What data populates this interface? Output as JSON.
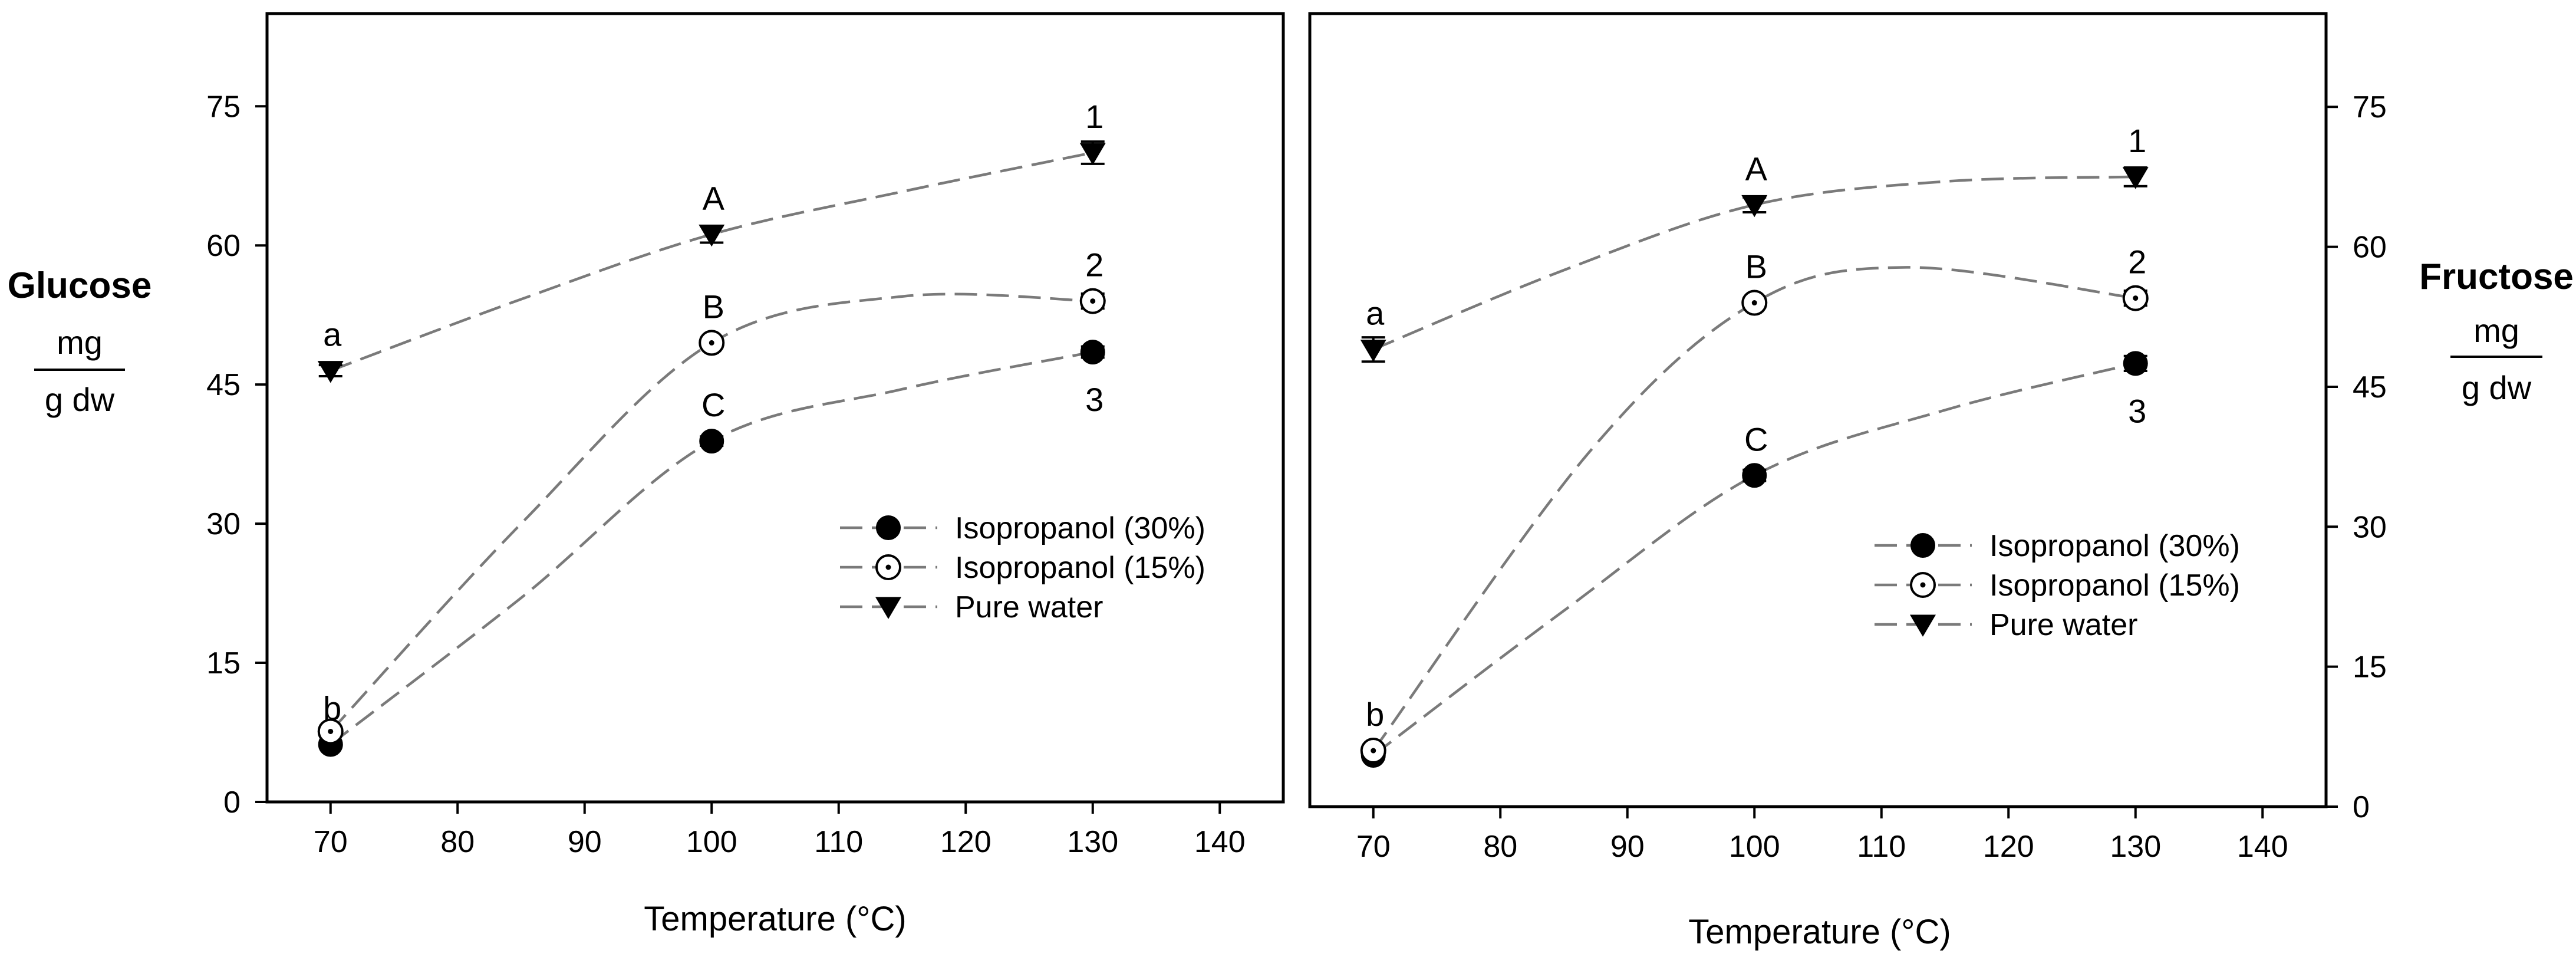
{
  "chart_data": [
    {
      "type": "line",
      "panel": "left",
      "ylabel_title": "Glucose",
      "ylabel_unit_numerator": "mg",
      "ylabel_unit_denominator": "g dw",
      "xlabel": "Temperature (°C)",
      "xlim": [
        65,
        145
      ],
      "ylim": [
        0,
        85
      ],
      "xticks": [
        70,
        80,
        90,
        100,
        110,
        120,
        130,
        140
      ],
      "yticks": [
        0,
        15,
        30,
        45,
        60,
        75
      ],
      "x": [
        70,
        100,
        130
      ],
      "legend_position": "center-right",
      "series": [
        {
          "name": "Isopropanol (30%)",
          "marker": "filled-circle",
          "values": [
            6.2,
            38.9,
            48.5
          ],
          "errors": [
            0.3,
            0.5,
            0.6
          ],
          "labels": [
            "b",
            "C",
            "3"
          ],
          "label_side": [
            "above",
            "above",
            "below"
          ],
          "curve_points": [
            [
              70,
              6.2
            ],
            [
              85,
              22
            ],
            [
              100,
              38.9
            ],
            [
              115,
              44.5
            ],
            [
              130,
              48.5
            ]
          ]
        },
        {
          "name": "Isopropanol (15%)",
          "marker": "dotted-circle",
          "values": [
            7.6,
            49.5,
            54.0
          ],
          "errors": [
            0.4,
            0.5,
            0.8
          ],
          "labels": [
            "",
            "B",
            "2"
          ],
          "label_side": [
            "above",
            "above",
            "above"
          ],
          "curve_points": [
            [
              70,
              7.6
            ],
            [
              85,
              30
            ],
            [
              100,
              49.5
            ],
            [
              115,
              54.5
            ],
            [
              130,
              54.0
            ]
          ]
        },
        {
          "name": "Pure water",
          "marker": "filled-triangle-down",
          "values": [
            46.5,
            61.2,
            70.0
          ],
          "errors": [
            0.6,
            0.9,
            1.2
          ],
          "labels": [
            "a",
            "A",
            "1"
          ],
          "label_side": [
            "above",
            "above",
            "above"
          ],
          "curve_points": [
            [
              70,
              46.5
            ],
            [
              85,
              54.2
            ],
            [
              100,
              61.2
            ],
            [
              115,
              65.8
            ],
            [
              130,
              70.0
            ]
          ]
        }
      ]
    },
    {
      "type": "line",
      "panel": "right",
      "ylabel_title": "Fructose",
      "ylabel_unit_numerator": "mg",
      "ylabel_unit_denominator": "g dw",
      "xlabel": "Temperature (°C)",
      "xlim": [
        65,
        145
      ],
      "ylim": [
        0,
        85
      ],
      "xticks": [
        70,
        80,
        90,
        100,
        110,
        120,
        130,
        140
      ],
      "yticks": [
        0,
        15,
        30,
        45,
        60,
        75
      ],
      "x": [
        70,
        100,
        130
      ],
      "legend_position": "lower-right",
      "series": [
        {
          "name": "Isopropanol (30%)",
          "marker": "filled-circle",
          "values": [
            5.5,
            35.5,
            47.5
          ],
          "errors": [
            0.3,
            0.6,
            0.8
          ],
          "labels": [
            "",
            "C",
            "3"
          ],
          "label_side": [
            "above",
            "above",
            "below"
          ],
          "curve_points": [
            [
              70,
              5.5
            ],
            [
              85,
              21
            ],
            [
              100,
              35.5
            ],
            [
              115,
              42.5
            ],
            [
              130,
              47.5
            ]
          ]
        },
        {
          "name": "Isopropanol (15%)",
          "marker": "dotted-circle",
          "values": [
            6.0,
            54.0,
            54.5
          ],
          "errors": [
            0.3,
            0.5,
            0.8
          ],
          "labels": [
            "b",
            "B",
            "2"
          ],
          "label_side": [
            "above",
            "above",
            "above"
          ],
          "curve_points": [
            [
              70,
              6.0
            ],
            [
              87,
              38
            ],
            [
              100,
              54.0
            ],
            [
              112,
              57.8
            ],
            [
              130,
              54.5
            ]
          ]
        },
        {
          "name": "Pure water",
          "marker": "filled-triangle-down",
          "values": [
            49.0,
            64.5,
            67.5
          ],
          "errors": [
            1.3,
            0.8,
            1.0
          ],
          "labels": [
            "a",
            "A",
            "1"
          ],
          "label_side": [
            "above",
            "above",
            "above"
          ],
          "curve_points": [
            [
              70,
              49.0
            ],
            [
              85,
              57.5
            ],
            [
              100,
              64.5
            ],
            [
              115,
              67.0
            ],
            [
              130,
              67.5
            ]
          ]
        }
      ]
    }
  ]
}
